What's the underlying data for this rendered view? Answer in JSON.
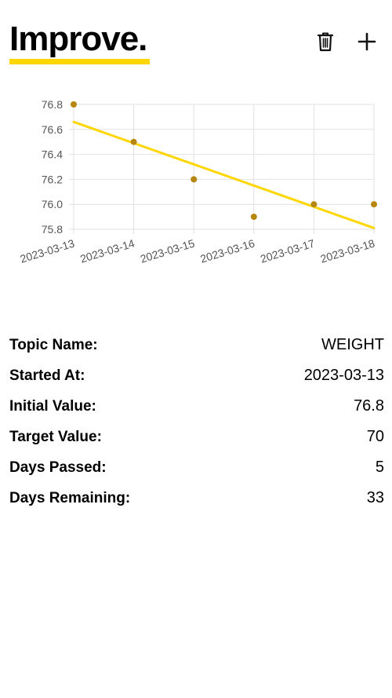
{
  "header": {
    "title": "Improve.",
    "trash_icon": "trash-icon",
    "add_icon": "plus-icon",
    "accent_color": "#FFD600"
  },
  "chart_data": {
    "type": "scatter",
    "x": [
      "2023-03-13",
      "2023-03-14",
      "2023-03-15",
      "2023-03-16",
      "2023-03-17",
      "2023-03-18"
    ],
    "series": [
      {
        "values": [
          76.8,
          76.5,
          76.2,
          75.9,
          76.0,
          76.0
        ],
        "color": "#B8860B"
      }
    ],
    "trendline": {
      "start": 76.66,
      "end": 75.81,
      "color": "#FFD600"
    },
    "yticks": [
      "76.8",
      "76.6",
      "76.4",
      "76.2",
      "76.0",
      "75.8"
    ],
    "ylim": [
      75.8,
      76.8
    ],
    "grid": true,
    "title": "",
    "xlabel": "",
    "ylabel": ""
  },
  "details": [
    {
      "label": "Topic Name:",
      "value": "WEIGHT"
    },
    {
      "label": "Started At:",
      "value": "2023-03-13"
    },
    {
      "label": "Initial Value:",
      "value": "76.8"
    },
    {
      "label": "Target Value:",
      "value": "70"
    },
    {
      "label": "Days Passed:",
      "value": "5"
    },
    {
      "label": "Days Remaining:",
      "value": "33"
    }
  ]
}
